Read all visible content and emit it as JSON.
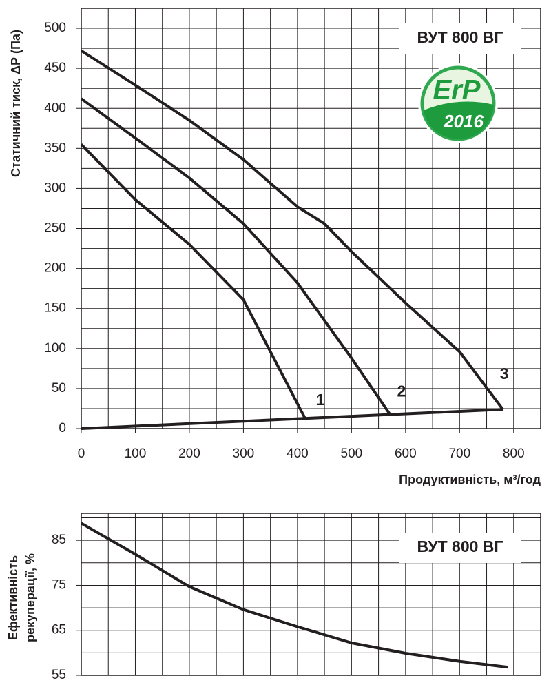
{
  "chart_data": [
    {
      "type": "line",
      "title": "ВУТ 800 ВГ",
      "logo": {
        "text": "ErP",
        "year": "2016"
      },
      "xlabel": "Продуктивність, м³/год",
      "ylabel": "Статичний тиск, ΔР (Па)",
      "xlim": [
        0,
        850
      ],
      "ylim": [
        0,
        525
      ],
      "xticks": [
        0,
        100,
        200,
        300,
        400,
        500,
        600,
        700,
        800
      ],
      "yticks": [
        0,
        50,
        100,
        150,
        200,
        250,
        300,
        350,
        400,
        450,
        500
      ],
      "xgrid": [
        50,
        100,
        150,
        200,
        250,
        300,
        350,
        400,
        450,
        500,
        550,
        600,
        650,
        700,
        750,
        800
      ],
      "ygrid": [
        25,
        50,
        75,
        100,
        125,
        150,
        175,
        200,
        225,
        250,
        275,
        300,
        325,
        350,
        375,
        400,
        425,
        450,
        475,
        500
      ],
      "series": [
        {
          "name": "1",
          "color": "#231f20",
          "x": [
            0,
            100,
            200,
            300,
            350,
            414
          ],
          "values": [
            355,
            286,
            230,
            161,
            96,
            13
          ]
        },
        {
          "name": "2",
          "color": "#231f20",
          "x": [
            0,
            100,
            200,
            300,
            400,
            500,
            572
          ],
          "values": [
            412,
            363,
            313,
            256,
            182,
            88,
            17
          ]
        },
        {
          "name": "3",
          "color": "#231f20",
          "x": [
            0,
            100,
            200,
            300,
            400,
            450,
            500,
            600,
            700,
            780
          ],
          "values": [
            472,
            429,
            385,
            336,
            277,
            256,
            221,
            157,
            96,
            24
          ]
        },
        {
          "color": "#231f20",
          "x": [
            0,
            780
          ],
          "values": [
            0,
            24
          ]
        }
      ]
    },
    {
      "type": "line",
      "title": "ВУТ 800 ВГ",
      "ylabel": [
        "Ефективність",
        "рекуперації, %"
      ],
      "xlim": [
        0,
        850
      ],
      "ylim": [
        55,
        91
      ],
      "yticks": [
        55,
        65,
        75,
        85
      ],
      "xgrid": [
        50,
        100,
        150,
        200,
        250,
        300,
        350,
        400,
        450,
        500,
        550,
        600,
        650,
        700,
        750,
        800
      ],
      "ygrid": [
        60,
        65,
        70,
        75,
        80,
        85,
        90
      ],
      "series": [
        {
          "color": "#231f20",
          "x": [
            0,
            100,
            200,
            300,
            400,
            500,
            600,
            700,
            790
          ],
          "values": [
            88.8,
            81.9,
            74.7,
            69.6,
            65.8,
            62.2,
            59.9,
            58.1,
            56.8
          ]
        }
      ]
    }
  ]
}
